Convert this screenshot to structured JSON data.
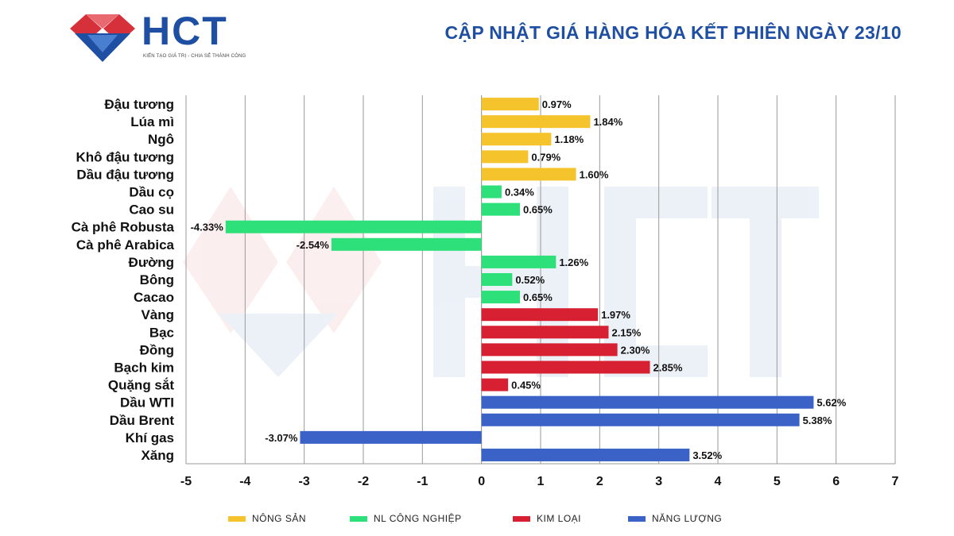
{
  "header": {
    "logo_text": "HCT",
    "logo_tagline": "KIẾN TẠO GIÁ TRỊ - CHIA SẺ THÀNH CÔNG",
    "title": "CẬP NHẬT GIÁ HÀNG HÓA KẾT PHIÊN NGÀY 23/10"
  },
  "colors": {
    "brand_blue": "#1f4fa3",
    "brand_red": "#d6303a",
    "nong_san": "#f5c42c",
    "nl_cong_nghiep": "#2ee07a",
    "kim_loai": "#d72132",
    "nang_luong": "#3a62c7"
  },
  "chart_data": {
    "type": "bar",
    "orientation": "horizontal",
    "title": "",
    "xlabel": "",
    "ylabel": "",
    "xlim": [
      -5,
      7
    ],
    "x_ticks": [
      -5,
      -4,
      -3,
      -2,
      -1,
      0,
      1,
      2,
      3,
      4,
      5,
      6,
      7
    ],
    "grid": "vertical",
    "legend_position": "bottom",
    "legend": [
      {
        "name": "NÔNG SẢN",
        "color": "#f5c42c"
      },
      {
        "name": "NL CÔNG NGHIỆP",
        "color": "#2ee07a"
      },
      {
        "name": "KIM LOẠI",
        "color": "#d72132"
      },
      {
        "name": "NĂNG LƯỢNG",
        "color": "#3a62c7"
      }
    ],
    "categories": [
      "Đậu tương",
      "Lúa mì",
      "Ngô",
      "Khô đậu tương",
      "Dầu đậu tương",
      "Dầu cọ",
      "Cao su",
      "Cà phê Robusta",
      "Cà phê Arabica",
      "Đường",
      "Bông",
      "Cacao",
      "Vàng",
      "Bạc",
      "Đồng",
      "Bạch kim",
      "Quặng sắt",
      "Dầu WTI",
      "Dầu Brent",
      "Khí gas",
      "Xăng"
    ],
    "values": [
      0.97,
      1.84,
      1.18,
      0.79,
      1.6,
      0.34,
      0.65,
      -4.33,
      -2.54,
      1.26,
      0.52,
      0.65,
      1.97,
      2.15,
      2.3,
      2.85,
      0.45,
      5.62,
      5.38,
      -3.07,
      3.52
    ],
    "value_labels": [
      "0.97%",
      "1.84%",
      "1.18%",
      "0.79%",
      "1.60%",
      "0.34%",
      "0.65%",
      "-4.33%",
      "-2.54%",
      "1.26%",
      "0.52%",
      "0.65%",
      "1.97%",
      "2.15%",
      "2.30%",
      "2.85%",
      "0.45%",
      "5.62%",
      "5.38%",
      "-3.07%",
      "3.52%"
    ],
    "groups": [
      "NÔNG SẢN",
      "NÔNG SẢN",
      "NÔNG SẢN",
      "NÔNG SẢN",
      "NÔNG SẢN",
      "NL CÔNG NGHIỆP",
      "NL CÔNG NGHIỆP",
      "NL CÔNG NGHIỆP",
      "NL CÔNG NGHIỆP",
      "NL CÔNG NGHIỆP",
      "NL CÔNG NGHIỆP",
      "NL CÔNG NGHIỆP",
      "KIM LOẠI",
      "KIM LOẠI",
      "KIM LOẠI",
      "KIM LOẠI",
      "KIM LOẠI",
      "NĂNG LƯỢNG",
      "NĂNG LƯỢNG",
      "NĂNG LƯỢNG",
      "NĂNG LƯỢNG"
    ]
  }
}
